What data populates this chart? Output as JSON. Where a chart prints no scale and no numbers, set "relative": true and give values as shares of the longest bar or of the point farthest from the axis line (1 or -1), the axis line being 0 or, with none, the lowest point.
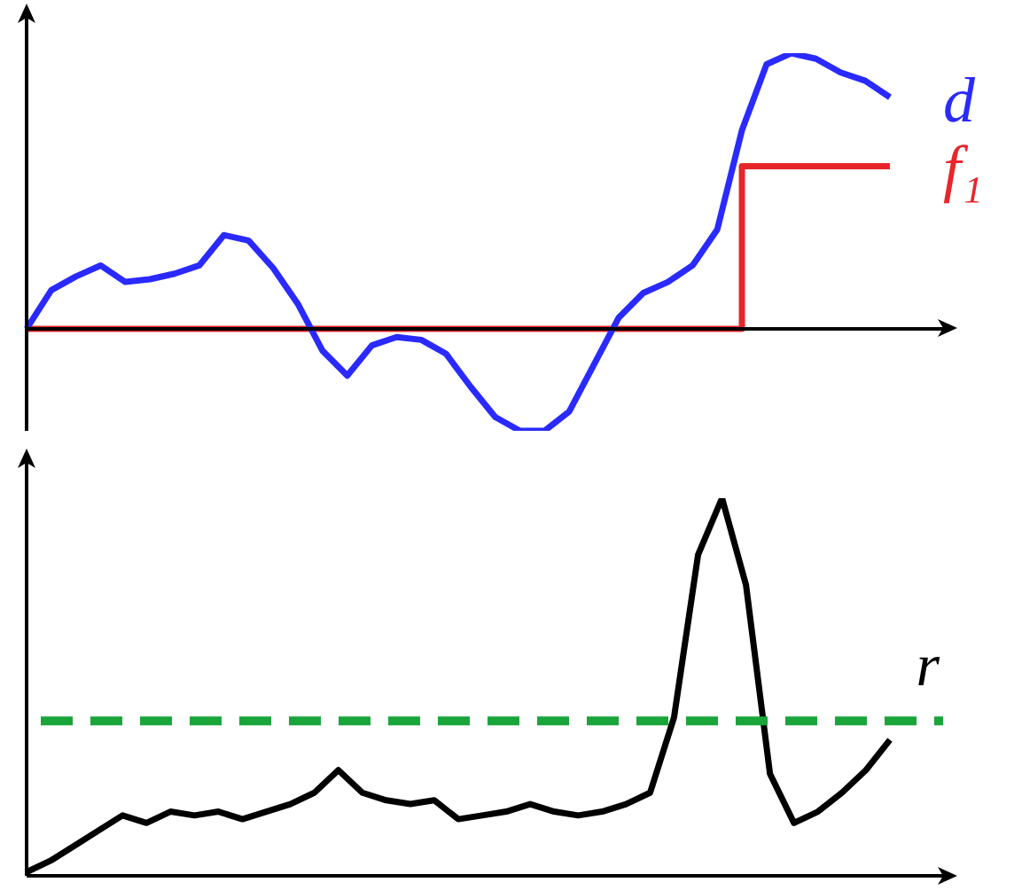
{
  "chart_data": [
    {
      "type": "line",
      "relative": true,
      "legend": false,
      "tick_labels": false,
      "marker": "none",
      "categories": [
        null,
        null,
        null,
        null,
        null,
        null,
        null,
        null,
        null,
        null,
        null,
        null,
        null,
        null,
        null,
        null,
        null,
        null,
        null,
        null,
        null,
        null,
        null,
        null,
        null,
        null,
        null,
        null,
        null,
        null,
        null,
        null,
        null,
        null,
        null,
        null
      ],
      "series": [
        {
          "name": "d",
          "color": "#2a2aff",
          "values": [
            0,
            0.14,
            0.19,
            0.23,
            0.17,
            0.18,
            0.2,
            0.23,
            0.34,
            0.32,
            0.22,
            0.09,
            -0.08,
            -0.17,
            -0.06,
            -0.03,
            -0.04,
            -0.09,
            -0.21,
            -0.32,
            -0.37,
            -0.37,
            -0.3,
            -0.13,
            0.04,
            0.13,
            0.17,
            0.23,
            0.36,
            0.72,
            0.96,
            1,
            0.98,
            0.93,
            0.9,
            0.84
          ]
        },
        {
          "name": "f₁",
          "type": "step",
          "color": "#e8262a",
          "values": [
            0,
            0,
            0,
            0,
            0,
            0,
            0,
            0,
            0,
            0,
            0,
            0,
            0,
            0,
            0,
            0,
            0,
            0,
            0,
            0,
            0,
            0,
            0,
            0,
            0,
            0,
            0,
            0,
            0,
            0.59,
            0.59,
            0.59,
            0.59,
            0.59,
            0.59,
            0.59
          ]
        }
      ]
    },
    {
      "type": "line",
      "relative": true,
      "legend": false,
      "tick_labels": false,
      "marker": "none",
      "categories": [
        null,
        null,
        null,
        null,
        null,
        null,
        null,
        null,
        null,
        null,
        null,
        null,
        null,
        null,
        null,
        null,
        null,
        null,
        null,
        null,
        null,
        null,
        null,
        null,
        null,
        null,
        null,
        null,
        null,
        null,
        null,
        null,
        null,
        null,
        null,
        null,
        null
      ],
      "series": [
        {
          "color": "#000000",
          "values": [
            0.01,
            0.04,
            0.08,
            0.12,
            0.16,
            0.14,
            0.17,
            0.16,
            0.17,
            0.15,
            0.17,
            0.19,
            0.22,
            0.28,
            0.22,
            0.2,
            0.19,
            0.2,
            0.15,
            0.16,
            0.17,
            0.19,
            0.17,
            0.16,
            0.17,
            0.19,
            0.22,
            0.42,
            0.85,
            1,
            0.77,
            0.27,
            0.14,
            0.17,
            0.22,
            0.28,
            0.36
          ]
        }
      ],
      "ref_lines": [
        {
          "axis": "y",
          "value": 0.41,
          "label": "r",
          "color": "#1aa53a",
          "line_style": "dashed"
        }
      ]
    }
  ]
}
